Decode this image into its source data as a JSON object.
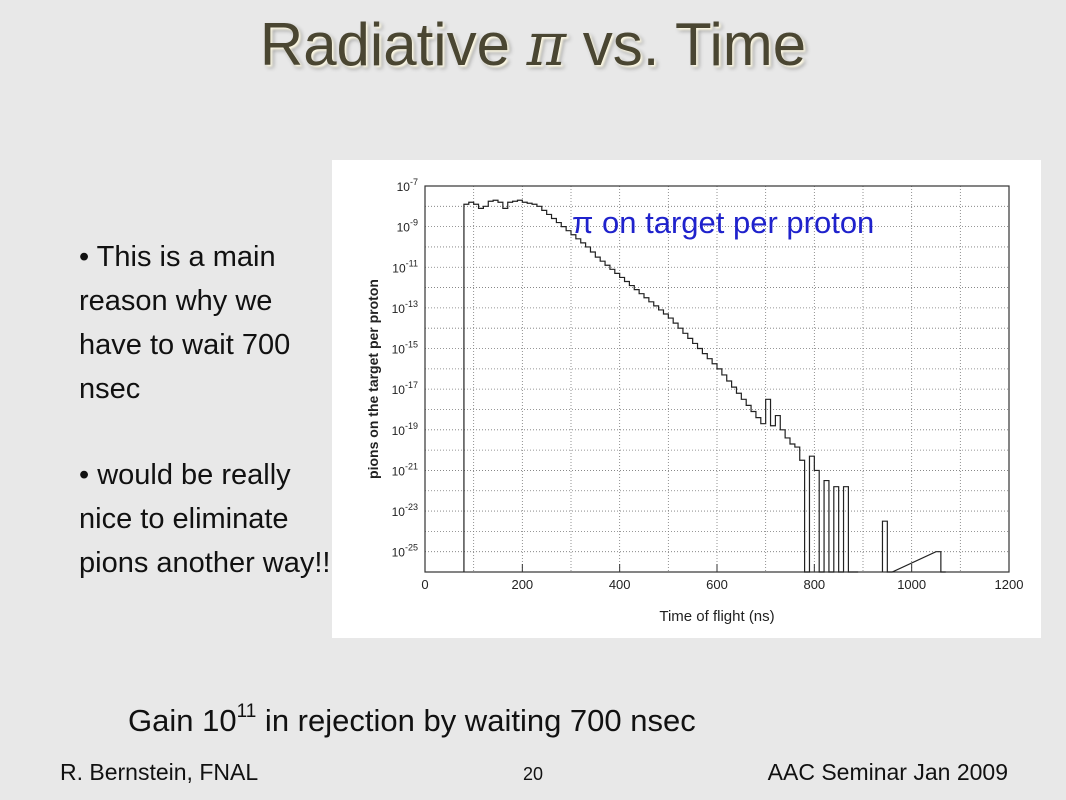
{
  "slide": {
    "title_pre": "Radiative ",
    "title_symbol": "π",
    "title_post": " vs. Time",
    "bullets": [
      "• This is a main reason why we have to wait 700 nsec",
      "• would be really nice to eliminate pions another way!!"
    ],
    "gain_pre": "Gain 10",
    "gain_exp": "11",
    "gain_mid": " in ",
    "gain_symbol": "",
    "gain_post": " rejection by waiting 700 nsec",
    "footer_left": "R. Bernstein, FNAL",
    "page_number": "20",
    "footer_right": "AAC Seminar Jan 2009"
  },
  "chart_data": {
    "type": "line",
    "step": true,
    "xlabel": "Time of flight (ns)",
    "ylabel": "pions on the target  per proton",
    "annotation": "π on target per proton",
    "xlim": [
      0,
      1200
    ],
    "ylim": [
      1e-26,
      1e-07
    ],
    "yscale": "log",
    "grid": true,
    "x_ticks": [
      0,
      200,
      400,
      600,
      800,
      1000,
      1200
    ],
    "y_tick_exponents": [
      -7,
      -9,
      -11,
      -13,
      -15,
      -17,
      -19,
      -21,
      -23,
      -25
    ],
    "y_tick_base": "10",
    "series": [
      {
        "x": [
          80,
          90,
          100,
          110,
          120,
          130,
          140,
          150,
          160,
          170,
          180,
          190,
          200,
          210,
          220,
          230,
          240,
          250,
          260,
          270,
          280,
          290,
          300,
          310,
          320,
          330,
          340,
          350,
          360,
          370,
          380,
          390,
          400,
          410,
          420,
          430,
          440,
          450,
          460,
          470,
          480,
          490,
          500,
          510,
          520,
          530,
          540,
          550,
          560,
          570,
          580,
          590,
          600,
          610,
          620,
          630,
          640,
          650,
          660,
          670,
          680,
          690,
          700,
          710,
          720,
          730,
          740,
          750,
          760,
          770,
          780,
          790,
          800,
          810,
          820,
          830,
          840,
          850,
          860,
          870,
          880
        ],
        "y_log10": [
          -7.9,
          -7.8,
          -7.9,
          -8.1,
          -8.0,
          -7.75,
          -7.7,
          -7.8,
          -8.1,
          -7.8,
          -7.75,
          -7.7,
          -7.8,
          -7.85,
          -7.9,
          -8.0,
          -8.2,
          -8.4,
          -8.6,
          -8.8,
          -9.0,
          -9.2,
          -9.4,
          -9.6,
          -9.8,
          -10.0,
          -10.25,
          -10.5,
          -10.7,
          -10.9,
          -11.1,
          -11.3,
          -11.5,
          -11.7,
          -11.9,
          -12.1,
          -12.3,
          -12.5,
          -12.7,
          -12.9,
          -13.1,
          -13.3,
          -13.5,
          -13.75,
          -14.0,
          -14.25,
          -14.5,
          -14.75,
          -15.0,
          -15.25,
          -15.5,
          -15.75,
          -16.0,
          -16.3,
          -16.6,
          -16.9,
          -17.2,
          -17.5,
          -17.8,
          -18.1,
          -18.4,
          -18.7,
          -17.5,
          -18.8,
          -18.3,
          -19.0,
          -19.4,
          -19.7,
          -19.85,
          -20.5,
          -26,
          -20.3,
          -21.0,
          -26,
          -21.5,
          -26,
          -21.8,
          -26,
          -21.8,
          -26,
          -26
        ]
      },
      {
        "x": [
          940,
          950,
          1050,
          1060
        ],
        "y_log10": [
          -23.5,
          -26,
          -25.0,
          -26
        ]
      }
    ]
  }
}
